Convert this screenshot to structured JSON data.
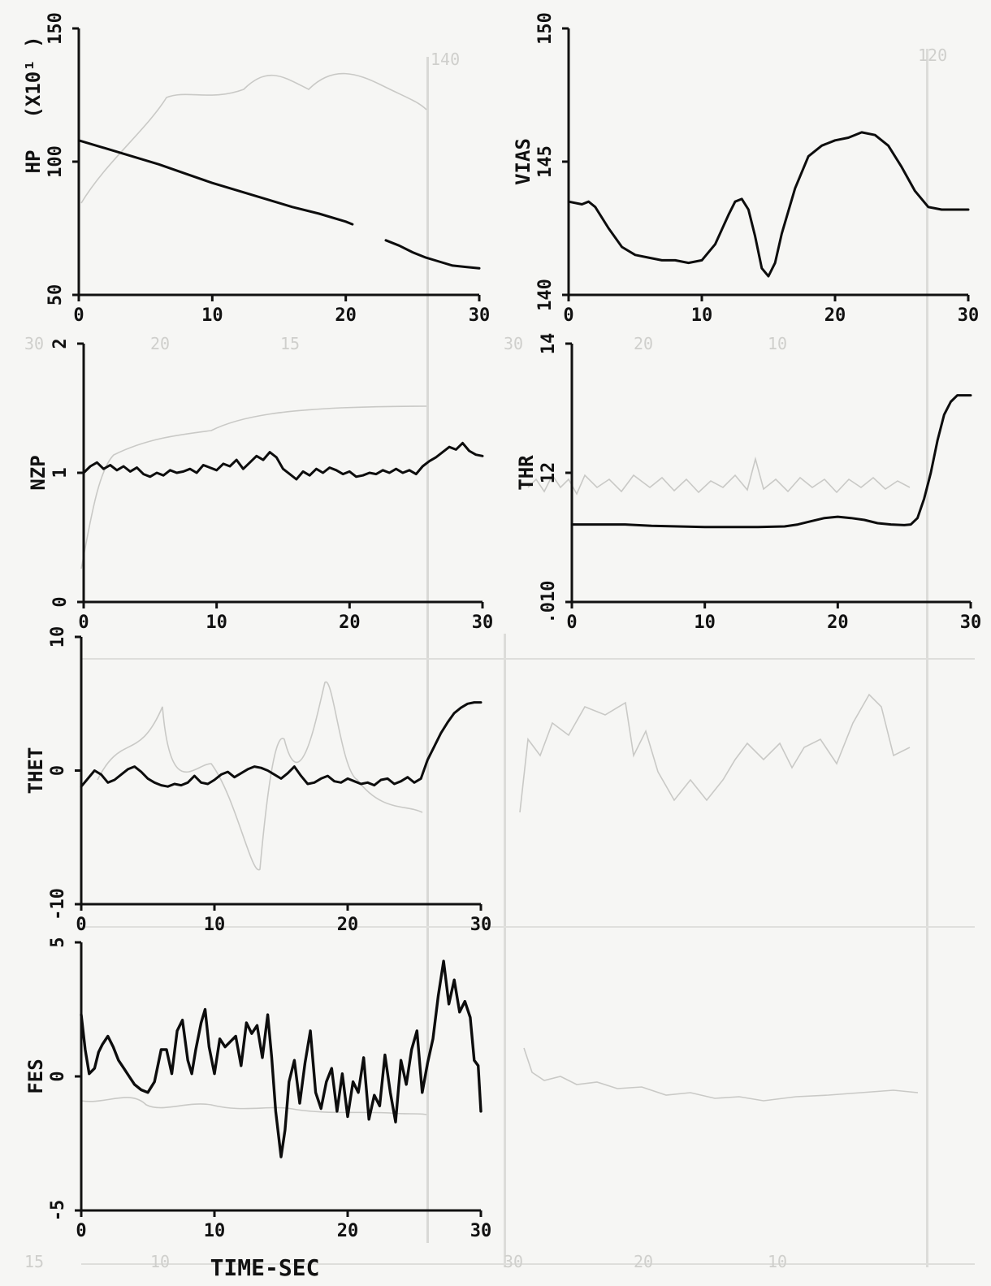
{
  "chart_data": [
    {
      "type": "line",
      "ylabel": "HP",
      "yunit": "(X10¹  )",
      "xlim": [
        0,
        30
      ],
      "ylim": [
        50,
        150
      ],
      "xticks": [
        "0",
        "10",
        "20",
        "30"
      ],
      "yticks": [
        "50",
        "100",
        "150"
      ],
      "grid": false,
      "series": [
        {
          "segments": [
            {
              "x": [
                0,
                2,
                4,
                6,
                8,
                10,
                12,
                14,
                16,
                18,
                20,
                20.5
              ],
              "y": [
                108,
                105,
                102,
                99,
                95.5,
                92,
                89,
                86,
                83,
                80.5,
                77.5,
                76.5
              ]
            },
            {
              "x": [
                23,
                24,
                25,
                26,
                27,
                28,
                29,
                30
              ],
              "y": [
                70.5,
                68.5,
                66,
                64,
                62.5,
                61,
                60.5,
                60
              ]
            }
          ]
        }
      ]
    },
    {
      "type": "line",
      "ylabel": "VIAS",
      "xlim": [
        0,
        30
      ],
      "ylim": [
        140,
        150
      ],
      "xticks": [
        "0",
        "10",
        "20",
        "30"
      ],
      "yticks": [
        "140",
        "145",
        "150"
      ],
      "grid": false,
      "series": [
        {
          "x": [
            0,
            1,
            1.5,
            2,
            3,
            4,
            5,
            6,
            7,
            8,
            9,
            10,
            11,
            12,
            12.5,
            13,
            13.5,
            14,
            14.5,
            15,
            15.5,
            16,
            17,
            18,
            19,
            20,
            21,
            22,
            23,
            24,
            25,
            26,
            27,
            28,
            29,
            30
          ],
          "y": [
            143.5,
            143.4,
            143.5,
            143.3,
            142.5,
            141.8,
            141.5,
            141.4,
            141.3,
            141.3,
            141.2,
            141.3,
            141.9,
            143,
            143.5,
            143.6,
            143.2,
            142.2,
            141.0,
            140.7,
            141.2,
            142.3,
            144.0,
            145.2,
            145.6,
            145.8,
            145.9,
            146.1,
            146.0,
            145.6,
            144.8,
            143.9,
            143.3,
            143.2,
            143.2,
            143.2
          ]
        }
      ]
    },
    {
      "type": "line",
      "ylabel": "NZP",
      "xlim": [
        0,
        30
      ],
      "ylim": [
        0,
        2
      ],
      "xticks": [
        "0",
        "10",
        "20",
        "30"
      ],
      "yticks": [
        "0",
        "1",
        "2"
      ],
      "grid": false,
      "series": [
        {
          "x": [
            0,
            0.5,
            1,
            1.5,
            2,
            2.5,
            3,
            3.5,
            4,
            4.5,
            5,
            5.5,
            6,
            6.5,
            7,
            7.5,
            8,
            8.5,
            9,
            9.5,
            10,
            10.5,
            11,
            11.5,
            12,
            12.5,
            13,
            13.5,
            14,
            14.5,
            15,
            15.5,
            16,
            16.5,
            17,
            17.5,
            18,
            18.5,
            19,
            19.5,
            20,
            20.5,
            21,
            21.5,
            22,
            22.5,
            23,
            23.5,
            24,
            24.5,
            25,
            25.5,
            26,
            26.5,
            27,
            27.5,
            28,
            28.5,
            29,
            29.5,
            30
          ],
          "y": [
            1.0,
            1.05,
            1.08,
            1.03,
            1.06,
            1.02,
            1.05,
            1.01,
            1.04,
            0.99,
            0.97,
            1.0,
            0.98,
            1.02,
            1.0,
            1.01,
            1.03,
            1.0,
            1.06,
            1.04,
            1.02,
            1.07,
            1.05,
            1.1,
            1.03,
            1.08,
            1.13,
            1.1,
            1.16,
            1.12,
            1.03,
            0.99,
            0.95,
            1.01,
            0.98,
            1.03,
            1.0,
            1.04,
            1.02,
            0.99,
            1.01,
            0.97,
            0.98,
            1.0,
            0.99,
            1.02,
            1.0,
            1.03,
            1.0,
            1.02,
            0.99,
            1.05,
            1.09,
            1.12,
            1.16,
            1.2,
            1.18,
            1.23,
            1.17,
            1.14,
            1.13
          ]
        }
      ]
    },
    {
      "type": "line",
      "ylabel": "THR",
      "xlim": [
        0,
        30
      ],
      "ylim": [
        0.01,
        0.014
      ],
      "xticks": [
        "0",
        "10",
        "20",
        "30"
      ],
      "yticks": [
        ".010",
        "12",
        "14"
      ],
      "grid": false,
      "series": [
        {
          "x": [
            0,
            2,
            4,
            6,
            8,
            10,
            12,
            14,
            16,
            17,
            18,
            19,
            20,
            21,
            22,
            23,
            24,
            25,
            25.5,
            26,
            26.5,
            27,
            27.5,
            28,
            28.5,
            29,
            30
          ],
          "y": [
            0.0112,
            0.0112,
            0.0112,
            0.01118,
            0.01117,
            0.01116,
            0.01116,
            0.01116,
            0.01117,
            0.0112,
            0.01125,
            0.0113,
            0.01132,
            0.0113,
            0.01127,
            0.01122,
            0.0112,
            0.01119,
            0.0112,
            0.0113,
            0.0116,
            0.012,
            0.0125,
            0.0129,
            0.0131,
            0.0132,
            0.0132
          ]
        }
      ]
    },
    {
      "type": "line",
      "ylabel": "THET",
      "xlim": [
        0,
        30
      ],
      "ylim": [
        -10,
        10
      ],
      "xticks": [
        "0",
        "10",
        "20",
        "30"
      ],
      "yticks": [
        "-10",
        "0",
        "10"
      ],
      "grid": false,
      "series": [
        {
          "x": [
            0,
            0.5,
            1,
            1.5,
            2,
            2.5,
            3,
            3.5,
            4,
            4.5,
            5,
            5.5,
            6,
            6.5,
            7,
            7.5,
            8,
            8.5,
            9,
            9.5,
            10,
            10.5,
            11,
            11.5,
            12,
            12.5,
            13,
            13.5,
            14,
            14.5,
            15,
            15.5,
            16,
            16.5,
            17,
            17.5,
            18,
            18.5,
            19,
            19.5,
            20,
            20.5,
            21,
            21.5,
            22,
            22.5,
            23,
            23.5,
            24,
            24.5,
            25,
            25.5,
            26,
            26.5,
            27,
            27.5,
            28,
            28.5,
            29,
            29.5,
            30
          ],
          "y": [
            -1.2,
            -0.6,
            0,
            -0.3,
            -0.9,
            -0.7,
            -0.3,
            0.1,
            0.3,
            -0.1,
            -0.6,
            -0.9,
            -1.1,
            -1.2,
            -1.0,
            -1.1,
            -0.9,
            -0.4,
            -0.9,
            -1.0,
            -0.7,
            -0.3,
            -0.1,
            -0.5,
            -0.2,
            0.1,
            0.3,
            0.2,
            0.0,
            -0.3,
            -0.6,
            -0.2,
            0.3,
            -0.4,
            -1.0,
            -0.9,
            -0.6,
            -0.4,
            -0.8,
            -0.9,
            -0.6,
            -0.8,
            -1.0,
            -0.9,
            -1.1,
            -0.7,
            -0.6,
            -1.0,
            -0.8,
            -0.5,
            -0.9,
            -0.6,
            0.8,
            1.8,
            2.8,
            3.6,
            4.3,
            4.7,
            5.0,
            5.1,
            5.1
          ]
        }
      ]
    },
    {
      "type": "line",
      "ylabel": "FES",
      "xlabel": "TIME-SEC",
      "xlim": [
        0,
        30
      ],
      "ylim": [
        -5,
        5
      ],
      "xticks": [
        "0",
        "10",
        "20",
        "30"
      ],
      "yticks": [
        "-5",
        "0",
        "5"
      ],
      "grid": false,
      "series": [
        {
          "x": [
            0,
            0.3,
            0.6,
            1,
            1.3,
            1.6,
            2,
            2.4,
            2.8,
            3.2,
            3.6,
            4,
            4.5,
            5,
            5.5,
            6,
            6.4,
            6.8,
            7.2,
            7.6,
            8,
            8.3,
            8.6,
            9,
            9.3,
            9.6,
            10,
            10.4,
            10.8,
            11.2,
            11.6,
            12,
            12.4,
            12.8,
            13.2,
            13.6,
            14,
            14.3,
            14.6,
            15,
            15.3,
            15.6,
            16,
            16.4,
            16.8,
            17.2,
            17.6,
            18,
            18.4,
            18.8,
            19.2,
            19.6,
            20,
            20.4,
            20.8,
            21.2,
            21.6,
            22,
            22.4,
            22.8,
            23.2,
            23.6,
            24,
            24.4,
            24.8,
            25.2,
            25.6,
            26,
            26.4,
            26.8,
            27.2,
            27.6,
            28,
            28.4,
            28.8,
            29.2,
            29.5,
            29.8,
            30
          ],
          "y": [
            2.3,
            1.0,
            0.1,
            0.3,
            0.9,
            1.2,
            1.5,
            1.1,
            0.6,
            0.3,
            0.0,
            -0.3,
            -0.5,
            -0.6,
            -0.2,
            1.0,
            1.0,
            0.1,
            1.7,
            2.1,
            0.6,
            0.1,
            1.0,
            2.0,
            2.5,
            1.1,
            0.1,
            1.4,
            1.1,
            1.3,
            1.5,
            0.4,
            2.0,
            1.6,
            1.9,
            0.7,
            2.3,
            0.7,
            -1.3,
            -3.0,
            -2.0,
            -0.2,
            0.6,
            -1.0,
            0.5,
            1.7,
            -0.6,
            -1.2,
            -0.2,
            0.3,
            -1.3,
            0.1,
            -1.5,
            -0.2,
            -0.6,
            0.7,
            -1.6,
            -0.7,
            -1.1,
            0.8,
            -0.6,
            -1.7,
            0.6,
            -0.3,
            1.0,
            1.7,
            -0.6,
            0.5,
            1.4,
            3.0,
            4.3,
            2.7,
            3.6,
            2.4,
            2.8,
            2.2,
            0.6,
            0.4,
            -1.3
          ]
        }
      ]
    }
  ]
}
